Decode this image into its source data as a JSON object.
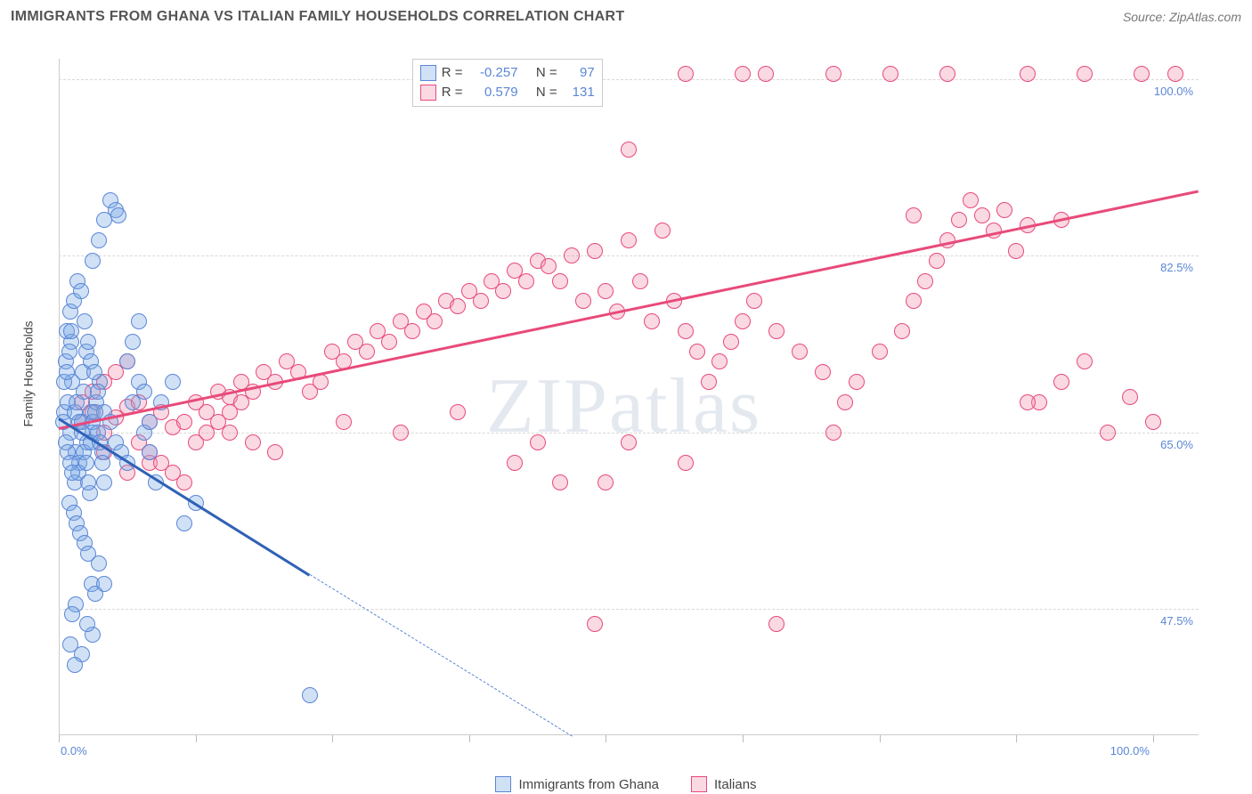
{
  "header": {
    "title": "IMMIGRANTS FROM GHANA VS ITALIAN FAMILY HOUSEHOLDS CORRELATION CHART",
    "source": "Source: ZipAtlas.com"
  },
  "ylabel": "Family Households",
  "watermark": "ZIPatlas",
  "chart": {
    "type": "scatter",
    "xlim": [
      0,
      100
    ],
    "ylim": [
      35,
      102
    ],
    "y_ticks": [
      47.5,
      65.0,
      82.5,
      100.0
    ],
    "y_tick_labels": [
      "47.5%",
      "65.0%",
      "82.5%",
      "100.0%"
    ],
    "x_ticks": [
      0,
      12,
      24,
      36,
      48,
      60,
      72,
      84,
      96
    ],
    "x_tick_labels": [
      "0.0%",
      "",
      "",
      "",
      "",
      "",
      "",
      "",
      "100.0%"
    ],
    "grid_color": "#d8d8d8",
    "background_color": "#ffffff",
    "tick_label_color": "#5b86d6",
    "marker_radius": 9,
    "series": {
      "ghana": {
        "label": "Immigrants from Ghana",
        "fill": "rgba(120,168,230,0.35)",
        "stroke": "#5b86d6",
        "r_value": "-0.257",
        "n_value": "97",
        "trend": {
          "x1": 0,
          "y1": 66.5,
          "x2": 22,
          "y2": 51.0,
          "color": "#2f62b7"
        },
        "trend_ext": {
          "x1": 22,
          "y1": 51.0,
          "x2": 45,
          "y2": 35.0,
          "color": "#5b86d6"
        },
        "points": [
          [
            0.5,
            67
          ],
          [
            0.8,
            68
          ],
          [
            1.0,
            65
          ],
          [
            1.2,
            70
          ],
          [
            1.5,
            63
          ],
          [
            1.8,
            62
          ],
          [
            2.0,
            66
          ],
          [
            2.2,
            69
          ],
          [
            2.5,
            64
          ],
          [
            2.8,
            67
          ],
          [
            0.6,
            72
          ],
          [
            1.1,
            74
          ],
          [
            1.4,
            60
          ],
          [
            1.7,
            61
          ],
          [
            2.1,
            71
          ],
          [
            2.4,
            73
          ],
          [
            2.7,
            59
          ],
          [
            3.0,
            65
          ],
          [
            3.3,
            68
          ],
          [
            3.6,
            70
          ],
          [
            0.9,
            58
          ],
          [
            1.3,
            57
          ],
          [
            1.6,
            56
          ],
          [
            1.9,
            55
          ],
          [
            2.3,
            54
          ],
          [
            2.6,
            53
          ],
          [
            2.9,
            50
          ],
          [
            3.2,
            49
          ],
          [
            3.5,
            52
          ],
          [
            3.8,
            63
          ],
          [
            0.7,
            75
          ],
          [
            1.05,
            77
          ],
          [
            1.35,
            78
          ],
          [
            1.65,
            80
          ],
          [
            1.95,
            79
          ],
          [
            2.25,
            76
          ],
          [
            2.55,
            74
          ],
          [
            2.85,
            72
          ],
          [
            3.15,
            71
          ],
          [
            3.45,
            69
          ],
          [
            4.0,
            67
          ],
          [
            4.5,
            66
          ],
          [
            5.0,
            64
          ],
          [
            5.5,
            63
          ],
          [
            6.0,
            62
          ],
          [
            6.5,
            68
          ],
          [
            7.0,
            70
          ],
          [
            7.5,
            65
          ],
          [
            8.0,
            63
          ],
          [
            8.5,
            60
          ],
          [
            3.0,
            82
          ],
          [
            3.5,
            84
          ],
          [
            4.0,
            86
          ],
          [
            4.5,
            88
          ],
          [
            5.0,
            87
          ],
          [
            5.2,
            86.5
          ],
          [
            2.0,
            43
          ],
          [
            3.0,
            45
          ],
          [
            4.0,
            50
          ],
          [
            1.5,
            48
          ],
          [
            2.5,
            46
          ],
          [
            1.0,
            44
          ],
          [
            6.0,
            72
          ],
          [
            6.5,
            74
          ],
          [
            7.0,
            76
          ],
          [
            7.5,
            69
          ],
          [
            8.0,
            66
          ],
          [
            9.0,
            68
          ],
          [
            10.0,
            70
          ],
          [
            11.0,
            56
          ],
          [
            12.0,
            58
          ],
          [
            0.4,
            66
          ],
          [
            0.6,
            64
          ],
          [
            0.8,
            63
          ],
          [
            1.0,
            62
          ],
          [
            1.2,
            61
          ],
          [
            1.4,
            67
          ],
          [
            1.6,
            68
          ],
          [
            1.8,
            66
          ],
          [
            2.0,
            65
          ],
          [
            2.2,
            63
          ],
          [
            2.4,
            62
          ],
          [
            2.6,
            60
          ],
          [
            2.8,
            64
          ],
          [
            3.0,
            66
          ],
          [
            3.2,
            67
          ],
          [
            3.4,
            65
          ],
          [
            3.6,
            64
          ],
          [
            3.8,
            62
          ],
          [
            4.0,
            60
          ],
          [
            0.5,
            70
          ],
          [
            0.7,
            71
          ],
          [
            0.9,
            73
          ],
          [
            1.1,
            75
          ],
          [
            22,
            39
          ],
          [
            1.4,
            42
          ],
          [
            1.2,
            47
          ]
        ]
      },
      "italians": {
        "label": "Italians",
        "fill": "rgba(240,145,175,0.35)",
        "stroke": "#e84a7a",
        "r_value": "0.579",
        "n_value": "131",
        "trend": {
          "x1": 0,
          "y1": 65.5,
          "x2": 100,
          "y2": 89.0,
          "color": "#e84a7a"
        },
        "points": [
          [
            2,
            66
          ],
          [
            3,
            67
          ],
          [
            4,
            65
          ],
          [
            5,
            66.5
          ],
          [
            6,
            67.5
          ],
          [
            7,
            68
          ],
          [
            8,
            66
          ],
          [
            9,
            67
          ],
          [
            10,
            65.5
          ],
          [
            11,
            66
          ],
          [
            12,
            68
          ],
          [
            13,
            67
          ],
          [
            14,
            69
          ],
          [
            15,
            68.5
          ],
          [
            16,
            70
          ],
          [
            17,
            69
          ],
          [
            18,
            71
          ],
          [
            19,
            70
          ],
          [
            20,
            72
          ],
          [
            21,
            71
          ],
          [
            22,
            69
          ],
          [
            23,
            70
          ],
          [
            24,
            73
          ],
          [
            25,
            72
          ],
          [
            26,
            74
          ],
          [
            27,
            73
          ],
          [
            28,
            75
          ],
          [
            29,
            74
          ],
          [
            30,
            76
          ],
          [
            31,
            75
          ],
          [
            32,
            77
          ],
          [
            33,
            76
          ],
          [
            34,
            78
          ],
          [
            35,
            77.5
          ],
          [
            36,
            79
          ],
          [
            37,
            78
          ],
          [
            38,
            80
          ],
          [
            39,
            79
          ],
          [
            40,
            81
          ],
          [
            41,
            80
          ],
          [
            42,
            82
          ],
          [
            43,
            81.5
          ],
          [
            44,
            80
          ],
          [
            45,
            82.5
          ],
          [
            46,
            78
          ],
          [
            47,
            83
          ],
          [
            48,
            79
          ],
          [
            49,
            77
          ],
          [
            50,
            84
          ],
          [
            51,
            80
          ],
          [
            52,
            76
          ],
          [
            53,
            85
          ],
          [
            54,
            78
          ],
          [
            55,
            75
          ],
          [
            56,
            73
          ],
          [
            57,
            70
          ],
          [
            58,
            72
          ],
          [
            59,
            74
          ],
          [
            60,
            76
          ],
          [
            61,
            78
          ],
          [
            63,
            75
          ],
          [
            65,
            73
          ],
          [
            67,
            71
          ],
          [
            68,
            65
          ],
          [
            69,
            68
          ],
          [
            70,
            70
          ],
          [
            72,
            73
          ],
          [
            74,
            75
          ],
          [
            75,
            78
          ],
          [
            76,
            80
          ],
          [
            77,
            82
          ],
          [
            78,
            84
          ],
          [
            79,
            86
          ],
          [
            80,
            88
          ],
          [
            81,
            86.5
          ],
          [
            82,
            85
          ],
          [
            83,
            87
          ],
          [
            84,
            83
          ],
          [
            85,
            85.5
          ],
          [
            86,
            68
          ],
          [
            88,
            70
          ],
          [
            90,
            72
          ],
          [
            92,
            65
          ],
          [
            94,
            68.5
          ],
          [
            96,
            66
          ],
          [
            50,
            93
          ],
          [
            55,
            100.5
          ],
          [
            60,
            100.5
          ],
          [
            68,
            100.5
          ],
          [
            73,
            100.5
          ],
          [
            78,
            100.5
          ],
          [
            85,
            100.5
          ],
          [
            90,
            100.5
          ],
          [
            95,
            100.5
          ],
          [
            98,
            100.5
          ],
          [
            62,
            100.5
          ],
          [
            47,
            46
          ],
          [
            63,
            46
          ],
          [
            40,
            62
          ],
          [
            42,
            64
          ],
          [
            44,
            60
          ],
          [
            15,
            65
          ],
          [
            17,
            64
          ],
          [
            19,
            63
          ],
          [
            8,
            62
          ],
          [
            6,
            61
          ],
          [
            4,
            63
          ],
          [
            25,
            66
          ],
          [
            30,
            65
          ],
          [
            35,
            67
          ],
          [
            88,
            86
          ],
          [
            85,
            68
          ],
          [
            75,
            86.5
          ],
          [
            55,
            62
          ],
          [
            50,
            64
          ],
          [
            48,
            60
          ],
          [
            2,
            68
          ],
          [
            3,
            69
          ],
          [
            4,
            70
          ],
          [
            5,
            71
          ],
          [
            6,
            72
          ],
          [
            7,
            64
          ],
          [
            8,
            63
          ],
          [
            9,
            62
          ],
          [
            10,
            61
          ],
          [
            11,
            60
          ],
          [
            12,
            64
          ],
          [
            13,
            65
          ],
          [
            14,
            66
          ],
          [
            15,
            67
          ],
          [
            16,
            68
          ]
        ]
      }
    }
  },
  "legend_box": {
    "r_label": "R =",
    "n_label": "N ="
  }
}
